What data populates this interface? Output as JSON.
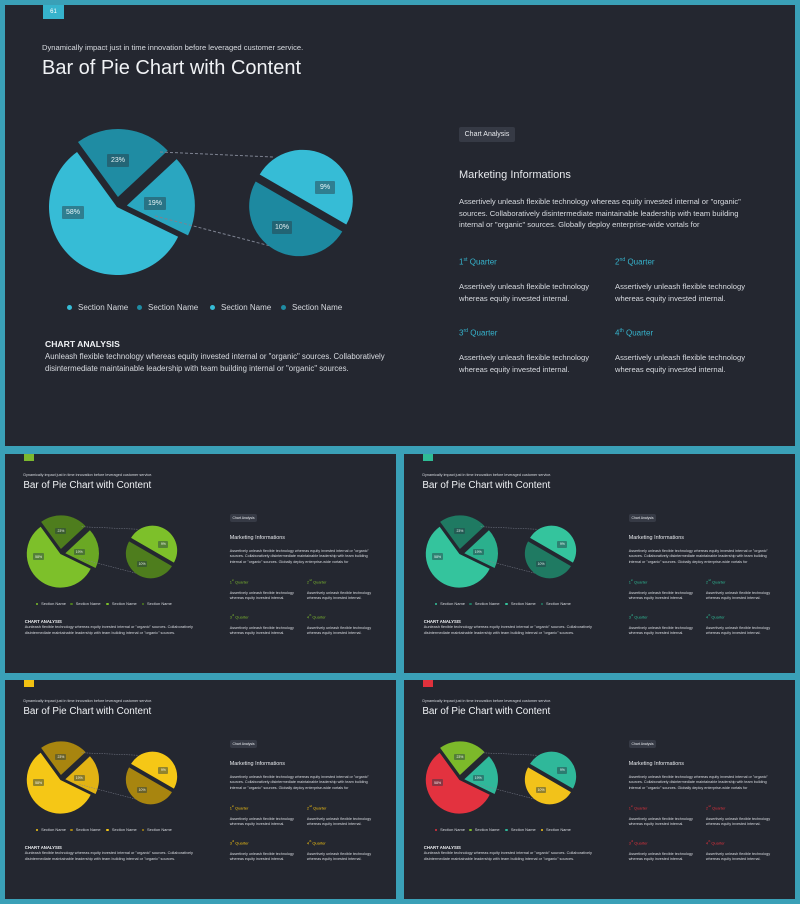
{
  "headline": "Dynamically impact just in time innovation  before leveraged customer service.",
  "title": "Bar of Pie Chart with Content",
  "chart_analysis_tag": "Chart Analysis",
  "chart_analysis_heading": "CHART ANALYSIS",
  "chart_analysis_text": "Aunleash flexible technology whereas equity invested internal or \"organic\" sources. Collaboratively disintermediate maintainable leadership with team building internal or \"organic\" sources.",
  "marketing_heading": "Marketing  Informations",
  "marketing_text": "Assertively unleash flexible technology whereas equity invested internal or \"organic\" sources. Collaboratively disintermediate maintainable leadership with team building internal or \"organic\" sources. Globally deploy enterprise-wide vortals for",
  "quarter_text": "Assertively unleash flexible technology whereas equity invested internal.",
  "quarters": [
    {
      "num": "1",
      "sup": "st",
      "label": " Quarter"
    },
    {
      "num": "2",
      "sup": "nd",
      "label": " Quarter"
    },
    {
      "num": "3",
      "sup": "rd",
      "label": "  Quarter"
    },
    {
      "num": "4",
      "sup": "th",
      "label": "  Quarter"
    }
  ],
  "legend_label": "Section Name",
  "chart_data": {
    "type": "pie",
    "pie_values": [
      58,
      23,
      19
    ],
    "pie_labels": [
      "58%",
      "23%",
      "19%"
    ],
    "bar_values": [
      9,
      10
    ],
    "bar_labels": [
      "9%",
      "10%"
    ]
  },
  "slides": [
    {
      "number": "61",
      "accent": "#36b3cc",
      "colors": [
        "#36bcd6",
        "#1f8ca3",
        "#2aa6c0",
        "#1d89a0",
        "#36bcd6",
        "#1d89a0",
        "#36bcd6",
        "#1d89a0"
      ],
      "legend": [
        "#36bcd6",
        "#1f8ca3",
        "#36bcd6",
        "#1f8ca3"
      ]
    },
    {
      "number": "",
      "accent": "#7cb82f",
      "colors": [
        "#7dc02a",
        "#4e7d1d",
        "#6aa824",
        "#4e7d1d",
        "#7dc02a",
        "#4e7d1d",
        "#7dc02a",
        "#4e7d1d"
      ],
      "legend": [
        "#7dc02a",
        "#4e7d1d",
        "#7dc02a",
        "#4e7d1d"
      ]
    },
    {
      "number": "",
      "accent": "#2ebc96",
      "colors": [
        "#34c49d",
        "#1f7a62",
        "#2bb08d",
        "#1f7a62",
        "#34c49d",
        "#1f7a62",
        "#34c49d",
        "#1f7a62"
      ],
      "legend": [
        "#34c49d",
        "#1f7a62",
        "#34c49d",
        "#1f7a62"
      ]
    },
    {
      "number": "",
      "accent": "#f2c112",
      "colors": [
        "#f5c716",
        "#a8850f",
        "#e2b314",
        "#a8850f",
        "#f5c716",
        "#a8850f",
        "#f5c716",
        "#a8850f"
      ],
      "legend": [
        "#f5c716",
        "#a8850f",
        "#f5c716",
        "#a8850f"
      ]
    },
    {
      "number": "",
      "accent": "#e0313c",
      "colors": [
        "#e3323f",
        "#7cb92a",
        "#2fb89a",
        "#f2c21a",
        "#2fb89a",
        "#f2c21a",
        "#2fb89a",
        "#f2c21a"
      ],
      "legend": [
        "#e3323f",
        "#7cb92a",
        "#2fb89a",
        "#f2c21a"
      ]
    }
  ]
}
